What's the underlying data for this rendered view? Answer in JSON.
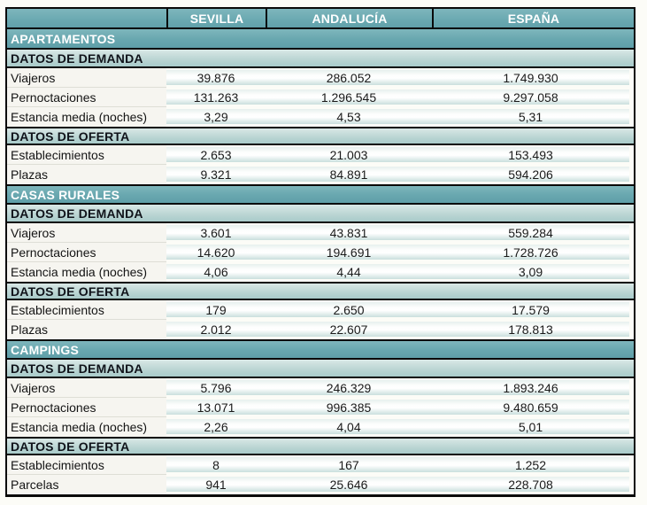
{
  "style": {
    "page_background": "#FCFCF7",
    "teal_header": "#68A7AF",
    "teal_light_subheader": "#BCD6D4",
    "label_cell_background": "#F6F5F0",
    "value_band_bottom": "#C9DFDD",
    "border_color": "#0A0A0A",
    "header_text_color": "#FFFFFF",
    "body_text_color": "#1A1A1A"
  },
  "chart_data": {
    "type": "table",
    "title": "",
    "columns": [
      "",
      "SEVILLA",
      "ANDALUCÍA",
      "ESPAÑA"
    ],
    "sections": [
      {
        "title": "APARTAMENTOS",
        "groups": [
          {
            "title": "DATOS DE DEMANDA",
            "rows": [
              {
                "label": "Viajeros",
                "values": [
                  "39.876",
                  "286.052",
                  "1.749.930"
                ]
              },
              {
                "label": "Pernoctaciones",
                "values": [
                  "131.263",
                  "1.296.545",
                  "9.297.058"
                ]
              },
              {
                "label": "Estancia media (noches)",
                "values": [
                  "3,29",
                  "4,53",
                  "5,31"
                ]
              }
            ]
          },
          {
            "title": "DATOS DE OFERTA",
            "rows": [
              {
                "label": "Establecimientos",
                "values": [
                  "2.653",
                  "21.003",
                  "153.493"
                ]
              },
              {
                "label": "Plazas",
                "values": [
                  "9.321",
                  "84.891",
                  "594.206"
                ]
              }
            ]
          }
        ]
      },
      {
        "title": "CASAS RURALES",
        "groups": [
          {
            "title": "DATOS DE DEMANDA",
            "rows": [
              {
                "label": "Viajeros",
                "values": [
                  "3.601",
                  "43.831",
                  "559.284"
                ]
              },
              {
                "label": "Pernoctaciones",
                "values": [
                  "14.620",
                  "194.691",
                  "1.728.726"
                ]
              },
              {
                "label": "Estancia media (noches)",
                "values": [
                  "4,06",
                  "4,44",
                  "3,09"
                ]
              }
            ]
          },
          {
            "title": "DATOS DE OFERTA",
            "rows": [
              {
                "label": "Establecimientos",
                "values": [
                  "179",
                  "2.650",
                  "17.579"
                ]
              },
              {
                "label": "Plazas",
                "values": [
                  "2.012",
                  "22.607",
                  "178.813"
                ]
              }
            ]
          }
        ]
      },
      {
        "title": "CAMPINGS",
        "groups": [
          {
            "title": "DATOS DE DEMANDA",
            "rows": [
              {
                "label": "Viajeros",
                "values": [
                  "5.796",
                  "246.329",
                  "1.893.246"
                ]
              },
              {
                "label": "Pernoctaciones",
                "values": [
                  "13.071",
                  "996.385",
                  "9.480.659"
                ]
              },
              {
                "label": "Estancia media (noches)",
                "values": [
                  "2,26",
                  "4,04",
                  "5,01"
                ]
              }
            ]
          },
          {
            "title": "DATOS DE OFERTA",
            "rows": [
              {
                "label": "Establecimientos",
                "values": [
                  "8",
                  "167",
                  "1.252"
                ]
              },
              {
                "label": "Parcelas",
                "values": [
                  "941",
                  "25.646",
                  "228.708"
                ]
              }
            ]
          }
        ]
      }
    ]
  }
}
